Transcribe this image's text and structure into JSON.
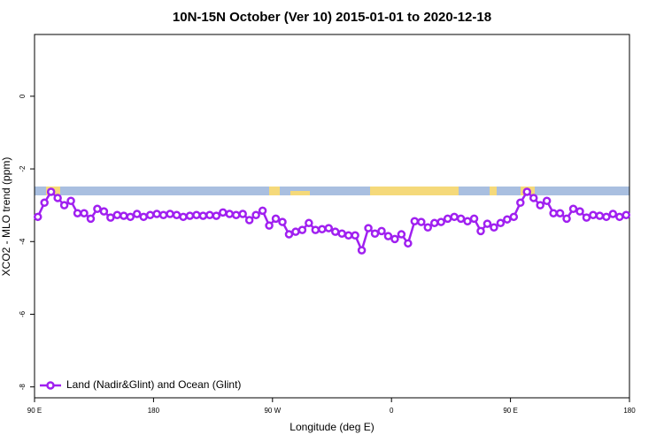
{
  "chart_data": {
    "type": "line",
    "title": "10N-15N October (Ver 10)   2015-01-01 to 2020-12-18",
    "xlabel": "Longitude (deg E)",
    "ylabel": "XCO2 - MLO trend (ppm)",
    "x": [
      92.5,
      97.5,
      102.5,
      107.5,
      112.5,
      117.5,
      122.5,
      127.5,
      132.5,
      137.5,
      142.5,
      147.5,
      152.5,
      157.5,
      162.5,
      167.5,
      172.5,
      177.5,
      182.5,
      187.5,
      192.5,
      197.5,
      202.5,
      207.5,
      212.5,
      217.5,
      222.5,
      227.5,
      232.5,
      237.5,
      242.5,
      247.5,
      252.5,
      257.5,
      262.5,
      267.5,
      272.5,
      277.5,
      282.5,
      287.5,
      292.5,
      297.5,
      302.5,
      307.5,
      312.5,
      317.5,
      322.5,
      327.5,
      332.5,
      337.5,
      342.5,
      347.5,
      352.5,
      357.5,
      362.5,
      367.5,
      372.5,
      377.5,
      382.5,
      387.5,
      392.5,
      397.5,
      402.5,
      407.5,
      412.5,
      417.5,
      422.5,
      427.5,
      432.5,
      437.5,
      442.5,
      447.5,
      452.5,
      457.5,
      462.5,
      467.5,
      472.5,
      477.5,
      482.5,
      487.5,
      492.5,
      497.5,
      502.5,
      507.5,
      512.5,
      517.5,
      522.5,
      527.5,
      532.5,
      537.5
    ],
    "series": [
      {
        "name": "Land (Nadir&Glint) and Ocean (Glint)",
        "color": "#a020f0",
        "values": [
          -3.32,
          -2.93,
          -2.63,
          -2.8,
          -3.0,
          -2.88,
          -3.22,
          -3.22,
          -3.37,
          -3.1,
          -3.17,
          -3.34,
          -3.27,
          -3.29,
          -3.32,
          -3.24,
          -3.32,
          -3.27,
          -3.24,
          -3.27,
          -3.24,
          -3.27,
          -3.32,
          -3.29,
          -3.27,
          -3.29,
          -3.27,
          -3.29,
          -3.2,
          -3.24,
          -3.27,
          -3.24,
          -3.41,
          -3.27,
          -3.15,
          -3.56,
          -3.37,
          -3.46,
          -3.8,
          -3.73,
          -3.68,
          -3.49,
          -3.68,
          -3.66,
          -3.63,
          -3.73,
          -3.78,
          -3.83,
          -3.83,
          -4.24,
          -3.63,
          -3.78,
          -3.71,
          -3.85,
          -3.93,
          -3.8,
          -4.05,
          -3.44,
          -3.46,
          -3.61,
          -3.49,
          -3.46,
          -3.37,
          -3.32,
          -3.37,
          -3.44,
          -3.37,
          -3.71,
          -3.51,
          -3.61,
          -3.49,
          -3.39,
          -3.32,
          -2.93,
          -2.63,
          -2.8,
          -3.0,
          -2.88,
          -3.22,
          -3.22,
          -3.37,
          -3.1,
          -3.17,
          -3.34,
          -3.27,
          -3.29,
          -3.32,
          -3.24,
          -3.32,
          -3.27
        ]
      }
    ],
    "xlim": [
      90,
      540
    ],
    "xticks": [
      {
        "value": 90,
        "label": "90 E"
      },
      180,
      {
        "value": 270,
        "label": "90 W"
      },
      {
        "value": 360,
        "label": "0"
      },
      {
        "value": 450,
        "label": "90 E"
      },
      {
        "value": 540,
        "label": "180"
      }
    ],
    "ylim": [
      -8.3,
      1.7
    ],
    "yticks": [
      0,
      -2,
      -4,
      -6,
      -8
    ],
    "legend": "bottom-left"
  }
}
